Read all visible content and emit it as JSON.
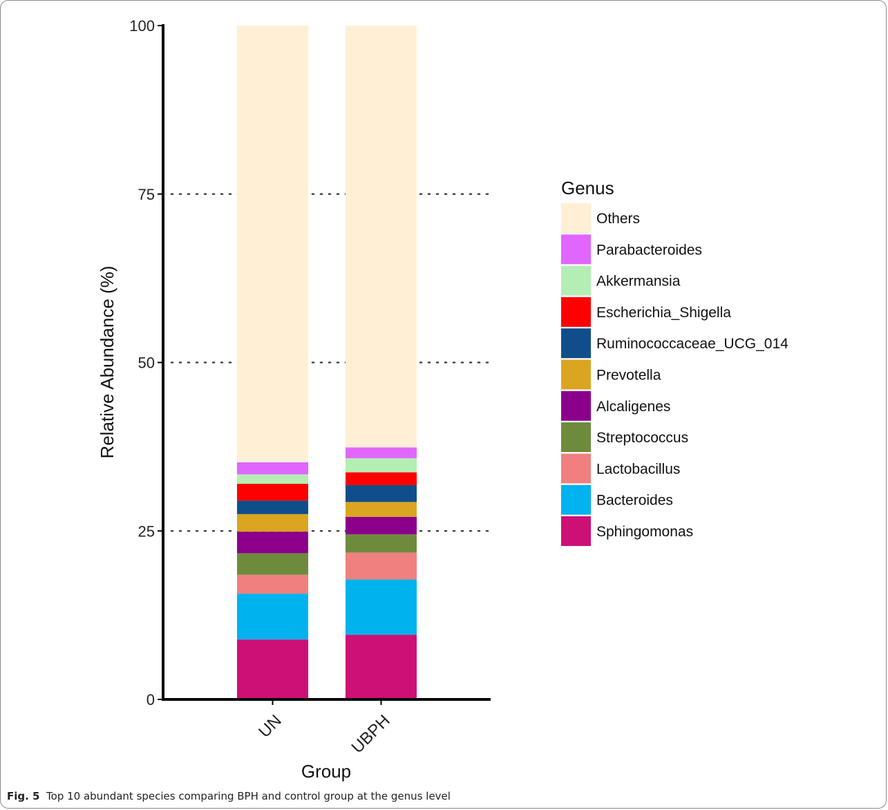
{
  "figure": {
    "label": "Fig. 5",
    "caption": "Top 10 abundant species comparing BPH and control group at the genus level"
  },
  "chart_data": {
    "type": "bar",
    "stacked": true,
    "categories": [
      "UN",
      "UBPH"
    ],
    "xlabel": "Group",
    "ylabel": "Relative Abundance (%)",
    "ylim": [
      0,
      100
    ],
    "yticks": [
      0,
      25,
      50,
      75,
      100
    ],
    "grid": "dotted horizontal lines at 25, 50, 75",
    "legend": {
      "title": "Genus",
      "position": "right"
    },
    "series": [
      {
        "name": "Sphingomonas",
        "color": "#CD1076",
        "values": [
          8.9,
          9.6
        ]
      },
      {
        "name": "Bacteroides",
        "color": "#00B2EE",
        "values": [
          6.8,
          8.2
        ]
      },
      {
        "name": "Lactobacillus",
        "color": "#F08080",
        "values": [
          2.8,
          4.0
        ]
      },
      {
        "name": "Streptococcus",
        "color": "#6E8B3D",
        "values": [
          3.2,
          2.7
        ]
      },
      {
        "name": "Alcaligenes",
        "color": "#8B008B",
        "values": [
          3.2,
          2.6
        ]
      },
      {
        "name": "Prevotella",
        "color": "#DAA520",
        "values": [
          2.6,
          2.2
        ]
      },
      {
        "name": "Ruminococcaceae_UCG_014",
        "color": "#104E8B",
        "values": [
          2.0,
          2.5
        ]
      },
      {
        "name": "Escherichia_Shigella",
        "color": "#FF0000",
        "values": [
          2.5,
          1.9
        ]
      },
      {
        "name": "Akkermansia",
        "color": "#B4EEB4",
        "values": [
          1.4,
          2.1
        ]
      },
      {
        "name": "Parabacteroides",
        "color": "#E066FF",
        "values": [
          1.8,
          1.6
        ]
      },
      {
        "name": "Others",
        "color": "#FFEFD5",
        "values": [
          64.8,
          62.6
        ]
      }
    ]
  }
}
